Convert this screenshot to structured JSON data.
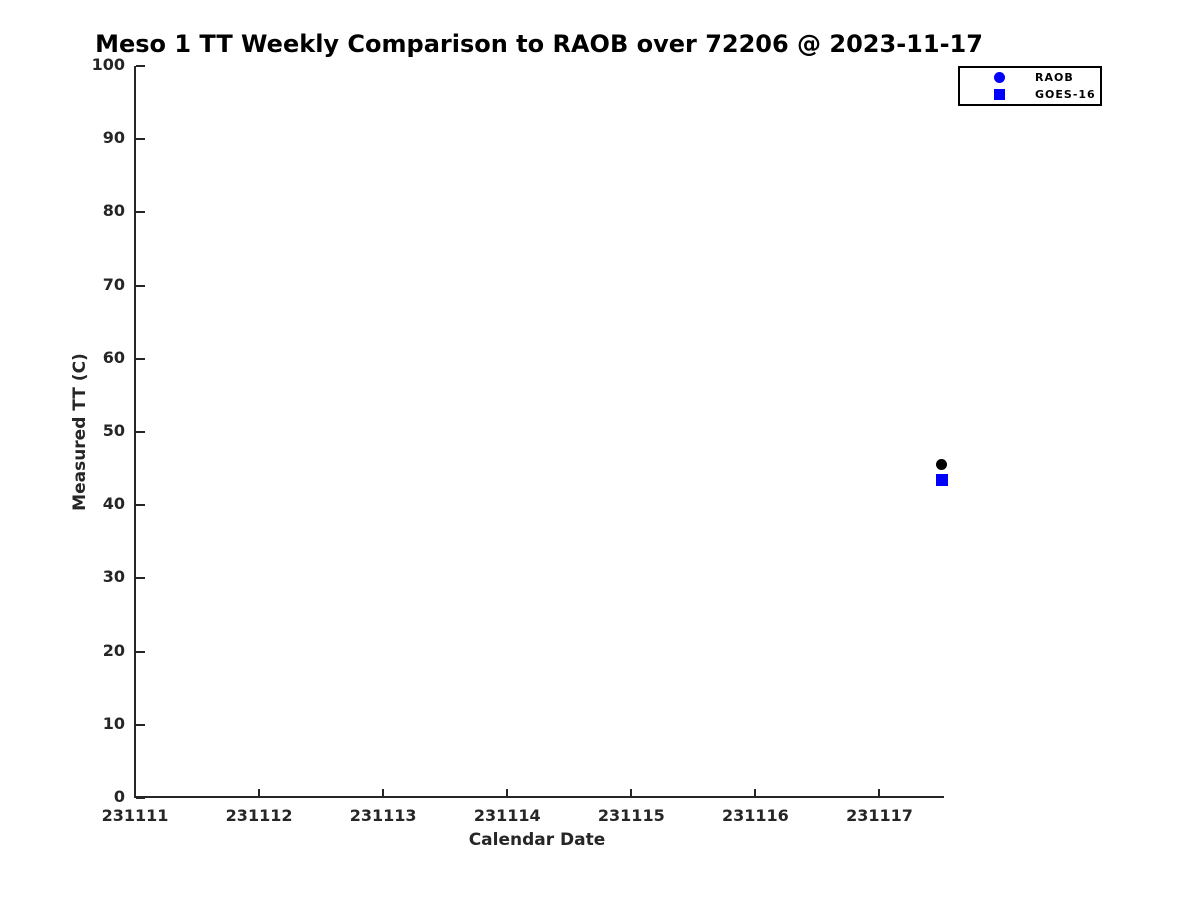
{
  "page": {
    "background": "#ffffff",
    "axis_color": "#262626",
    "title_color": "#000000"
  },
  "chart_data": {
    "type": "scatter",
    "title": "Meso 1 TT Weekly Comparison to RAOB over 72206 @ 2023-11-17",
    "xlabel": "Calendar Date",
    "ylabel": "Measured TT (C)",
    "xlim": [
      231111,
      231117.52
    ],
    "ylim": [
      0,
      100
    ],
    "xticks": [
      231111,
      231112,
      231113,
      231114,
      231115,
      231116,
      231117
    ],
    "yticks": [
      0,
      10,
      20,
      30,
      40,
      50,
      60,
      70,
      80,
      90,
      100
    ],
    "grid": false,
    "legend_position": "top-right",
    "series": [
      {
        "name": "RAOB",
        "marker": "circle",
        "legend_color": "#0000ff",
        "plot_color": "#000000",
        "marker_size": 11,
        "points": [
          {
            "x": 231117.5,
            "y": 45.6
          }
        ]
      },
      {
        "name": "GOES-16",
        "marker": "square",
        "legend_color": "#0000ff",
        "plot_color": "#0000ff",
        "marker_size": 12,
        "points": [
          {
            "x": 231117.5,
            "y": 43.4
          }
        ]
      }
    ]
  }
}
